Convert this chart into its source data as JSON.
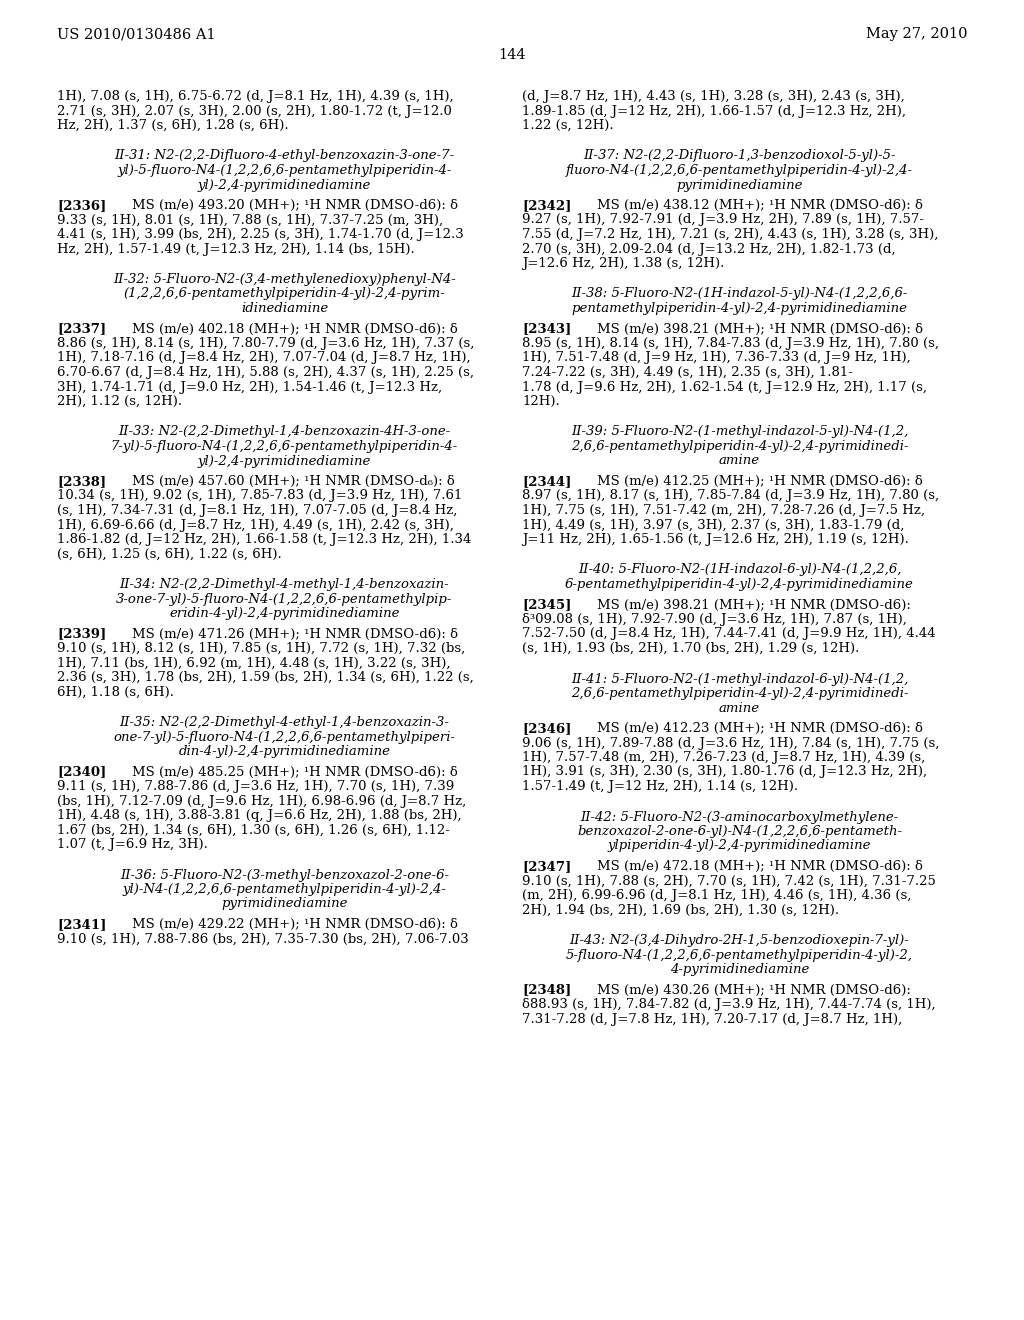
{
  "background_color": "#ffffff",
  "header_left": "US 2010/0130486 A1",
  "header_right": "May 27, 2010",
  "page_number": "144",
  "left_column": [
    {
      "type": "continuation",
      "text": "1H), 7.08 (s, 1H), 6.75-6.72 (d, J=8.1 Hz, 1H), 4.39 (s, 1H),\n2.71 (s, 3H), 2.07 (s, 3H), 2.00 (s, 2H), 1.80-1.72 (t, J=12.0\nHz, 2H), 1.37 (s, 6H), 1.28 (s, 6H)."
    },
    {
      "type": "compound_title",
      "text": "II-31: N2-(2,2-Difluoro-4-ethyl-benzoxazin-3-one-7-\nyl)-5-fluoro-N4-(1,2,2,6,6-pentamethylpiperidin-4-\nyl)-2,4-pyrimidinediamine"
    },
    {
      "type": "compound_data",
      "tag": "[2336]",
      "text": "MS (m/e) 493.20 (MH+); ¹H NMR (DMSO-d6): δ\n9.33 (s, 1H), 8.01 (s, 1H), 7.88 (s, 1H), 7.37-7.25 (m, 3H),\n4.41 (s, 1H), 3.99 (bs, 2H), 2.25 (s, 3H), 1.74-1.70 (d, J=12.3\nHz, 2H), 1.57-1.49 (t, J=12.3 Hz, 2H), 1.14 (bs, 15H)."
    },
    {
      "type": "compound_title",
      "text": "II-32: 5-Fluoro-N2-(3,4-methylenedioxy)phenyl-N4-\n(1,2,2,6,6-pentamethylpiperidin-4-yl)-2,4-pyrim-\nidinediamine"
    },
    {
      "type": "compound_data",
      "tag": "[2337]",
      "text": "MS (m/e) 402.18 (MH+); ¹H NMR (DMSO-d6): δ\n8.86 (s, 1H), 8.14 (s, 1H), 7.80-7.79 (d, J=3.6 Hz, 1H), 7.37 (s,\n1H), 7.18-7.16 (d, J=8.4 Hz, 2H), 7.07-7.04 (d, J=8.7 Hz, 1H),\n6.70-6.67 (d, J=8.4 Hz, 1H), 5.88 (s, 2H), 4.37 (s, 1H), 2.25 (s,\n3H), 1.74-1.71 (d, J=9.0 Hz, 2H), 1.54-1.46 (t, J=12.3 Hz,\n2H), 1.12 (s, 12H)."
    },
    {
      "type": "compound_title",
      "text": "II-33: N2-(2,2-Dimethyl-1,4-benzoxazin-4H-3-one-\n7-yl)-5-fluoro-N4-(1,2,2,6,6-pentamethylpiperidin-4-\nyl)-2,4-pyrimidinediamine"
    },
    {
      "type": "compound_data",
      "tag": "[2338]",
      "text": "MS (m/e) 457.60 (MH+); ¹H NMR (DMSO-d₆): δ\n10.34 (s, 1H), 9.02 (s, 1H), 7.85-7.83 (d, J=3.9 Hz, 1H), 7.61\n(s, 1H), 7.34-7.31 (d, J=8.1 Hz, 1H), 7.07-7.05 (d, J=8.4 Hz,\n1H), 6.69-6.66 (d, J=8.7 Hz, 1H), 4.49 (s, 1H), 2.42 (s, 3H),\n1.86-1.82 (d, J=12 Hz, 2H), 1.66-1.58 (t, J=12.3 Hz, 2H), 1.34\n(s, 6H), 1.25 (s, 6H), 1.22 (s, 6H)."
    },
    {
      "type": "compound_title",
      "text": "II-34: N2-(2,2-Dimethyl-4-methyl-1,4-benzoxazin-\n3-one-7-yl)-5-fluoro-N4-(1,2,2,6,6-pentamethylpip-\neridin-4-yl)-2,4-pyrimidinediamine"
    },
    {
      "type": "compound_data",
      "tag": "[2339]",
      "text": "MS (m/e) 471.26 (MH+); ¹H NMR (DMSO-d6): δ\n9.10 (s, 1H), 8.12 (s, 1H), 7.85 (s, 1H), 7.72 (s, 1H), 7.32 (bs,\n1H), 7.11 (bs, 1H), 6.92 (m, 1H), 4.48 (s, 1H), 3.22 (s, 3H),\n2.36 (s, 3H), 1.78 (bs, 2H), 1.59 (bs, 2H), 1.34 (s, 6H), 1.22 (s,\n6H), 1.18 (s, 6H)."
    },
    {
      "type": "compound_title",
      "text": "II-35: N2-(2,2-Dimethyl-4-ethyl-1,4-benzoxazin-3-\none-7-yl)-5-fluoro-N4-(1,2,2,6,6-pentamethylpiperi-\ndin-4-yl)-2,4-pyrimidinediamine"
    },
    {
      "type": "compound_data",
      "tag": "[2340]",
      "text": "MS (m/e) 485.25 (MH+); ¹H NMR (DMSO-d6): δ\n9.11 (s, 1H), 7.88-7.86 (d, J=3.6 Hz, 1H), 7.70 (s, 1H), 7.39\n(bs, 1H), 7.12-7.09 (d, J=9.6 Hz, 1H), 6.98-6.96 (d, J=8.7 Hz,\n1H), 4.48 (s, 1H), 3.88-3.81 (q, J=6.6 Hz, 2H), 1.88 (bs, 2H),\n1.67 (bs, 2H), 1.34 (s, 6H), 1.30 (s, 6H), 1.26 (s, 6H), 1.12-\n1.07 (t, J=6.9 Hz, 3H)."
    },
    {
      "type": "compound_title",
      "text": "II-36: 5-Fluoro-N2-(3-methyl-benzoxazol-2-one-6-\nyl)-N4-(1,2,2,6,6-pentamethylpiperidin-4-yl)-2,4-\npyrimidinediamine"
    },
    {
      "type": "compound_data",
      "tag": "[2341]",
      "text": "MS (m/e) 429.22 (MH+); ¹H NMR (DMSO-d6): δ\n9.10 (s, 1H), 7.88-7.86 (bs, 2H), 7.35-7.30 (bs, 2H), 7.06-7.03"
    }
  ],
  "right_column": [
    {
      "type": "continuation",
      "text": "(d, J=8.7 Hz, 1H), 4.43 (s, 1H), 3.28 (s, 3H), 2.43 (s, 3H),\n1.89-1.85 (d, J=12 Hz, 2H), 1.66-1.57 (d, J=12.3 Hz, 2H),\n1.22 (s, 12H)."
    },
    {
      "type": "compound_title",
      "text": "II-37: N2-(2,2-Difluoro-1,3-benzodioxol-5-yl)-5-\nfluoro-N4-(1,2,2,6,6-pentamethylpiperidin-4-yl)-2,4-\npyrimidinediamine"
    },
    {
      "type": "compound_data",
      "tag": "[2342]",
      "text": "MS (m/e) 438.12 (MH+); ¹H NMR (DMSO-d6): δ\n9.27 (s, 1H), 7.92-7.91 (d, J=3.9 Hz, 2H), 7.89 (s, 1H), 7.57-\n7.55 (d, J=7.2 Hz, 1H), 7.21 (s, 2H), 4.43 (s, 1H), 3.28 (s, 3H),\n2.70 (s, 3H), 2.09-2.04 (d, J=13.2 Hz, 2H), 1.82-1.73 (d,\nJ=12.6 Hz, 2H), 1.38 (s, 12H)."
    },
    {
      "type": "compound_title",
      "text": "II-38: 5-Fluoro-N2-(1H-indazol-5-yl)-N4-(1,2,2,6,6-\npentamethylpiperidin-4-yl)-2,4-pyrimidinediamine"
    },
    {
      "type": "compound_data",
      "tag": "[2343]",
      "text": "MS (m/e) 398.21 (MH+); ¹H NMR (DMSO-d6): δ\n8.95 (s, 1H), 8.14 (s, 1H), 7.84-7.83 (d, J=3.9 Hz, 1H), 7.80 (s,\n1H), 7.51-7.48 (d, J=9 Hz, 1H), 7.36-7.33 (d, J=9 Hz, 1H),\n7.24-7.22 (s, 3H), 4.49 (s, 1H), 2.35 (s, 3H), 1.81-\n1.78 (d, J=9.6 Hz, 2H), 1.62-1.54 (t, J=12.9 Hz, 2H), 1.17 (s,\n12H)."
    },
    {
      "type": "compound_title",
      "text": "II-39: 5-Fluoro-N2-(1-methyl-indazol-5-yl)-N4-(1,2,\n2,6,6-pentamethylpiperidin-4-yl)-2,4-pyrimidinedi-\namine"
    },
    {
      "type": "compound_data",
      "tag": "[2344]",
      "text": "MS (m/e) 412.25 (MH+); ¹H NMR (DMSO-d6): δ\n8.97 (s, 1H), 8.17 (s, 1H), 7.85-7.84 (d, J=3.9 Hz, 1H), 7.80 (s,\n1H), 7.75 (s, 1H), 7.51-7.42 (m, 2H), 7.28-7.26 (d, J=7.5 Hz,\n1H), 4.49 (s, 1H), 3.97 (s, 3H), 2.37 (s, 3H), 1.83-1.79 (d,\nJ=11 Hz, 2H), 1.65-1.56 (t, J=12.6 Hz, 2H), 1.19 (s, 12H)."
    },
    {
      "type": "compound_title",
      "text": "II-40: 5-Fluoro-N2-(1H-indazol-6-yl)-N4-(1,2,2,6,\n6-pentamethylpiperidin-4-yl)-2,4-pyrimidinediamine"
    },
    {
      "type": "compound_data",
      "tag": "[2345]",
      "text": "MS (m/e) 398.21 (MH+); ¹H NMR (DMSO-d6):\nδ³09.08 (s, 1H), 7.92-7.90 (d, J=3.6 Hz, 1H), 7.87 (s, 1H),\n7.52-7.50 (d, J=8.4 Hz, 1H), 7.44-7.41 (d, J=9.9 Hz, 1H), 4.44\n(s, 1H), 1.93 (bs, 2H), 1.70 (bs, 2H), 1.29 (s, 12H)."
    },
    {
      "type": "compound_title",
      "text": "II-41: 5-Fluoro-N2-(1-methyl-indazol-6-yl)-N4-(1,2,\n2,6,6-pentamethylpiperidin-4-yl)-2,4-pyrimidinedi-\namine"
    },
    {
      "type": "compound_data",
      "tag": "[2346]",
      "text": "MS (m/e) 412.23 (MH+); ¹H NMR (DMSO-d6): δ\n9.06 (s, 1H), 7.89-7.88 (d, J=3.6 Hz, 1H), 7.84 (s, 1H), 7.75 (s,\n1H), 7.57-7.48 (m, 2H), 7.26-7.23 (d, J=8.7 Hz, 1H), 4.39 (s,\n1H), 3.91 (s, 3H), 2.30 (s, 3H), 1.80-1.76 (d, J=12.3 Hz, 2H),\n1.57-1.49 (t, J=12 Hz, 2H), 1.14 (s, 12H)."
    },
    {
      "type": "compound_title",
      "text": "II-42: 5-Fluoro-N2-(3-aminocarboxylmethylene-\nbenzoxazol-2-one-6-yl)-N4-(1,2,2,6,6-pentameth-\nylpiperidin-4-yl)-2,4-pyrimidinediamine"
    },
    {
      "type": "compound_data",
      "tag": "[2347]",
      "text": "MS (m/e) 472.18 (MH+); ¹H NMR (DMSO-d6): δ\n9.10 (s, 1H), 7.88 (s, 2H), 7.70 (s, 1H), 7.42 (s, 1H), 7.31-7.25\n(m, 2H), 6.99-6.96 (d, J=8.1 Hz, 1H), 4.46 (s, 1H), 4.36 (s,\n2H), 1.94 (bs, 2H), 1.69 (bs, 2H), 1.30 (s, 12H)."
    },
    {
      "type": "compound_title",
      "text": "II-43: N2-(3,4-Dihydro-2H-1,5-benzodioxepin-7-yl)-\n5-fluoro-N4-(1,2,2,6,6-pentamethylpiperidin-4-yl)-2,\n4-pyrimidinediamine"
    },
    {
      "type": "compound_data",
      "tag": "[2348]",
      "text": "MS (m/e) 430.26 (MH+); ¹H NMR (DMSO-d6):\nδ88.93 (s, 1H), 7.84-7.82 (d, J=3.9 Hz, 1H), 7.44-7.74 (s, 1H),\n7.31-7.28 (d, J=7.8 Hz, 1H), 7.20-7.17 (d, J=8.7 Hz, 1H),"
    }
  ]
}
